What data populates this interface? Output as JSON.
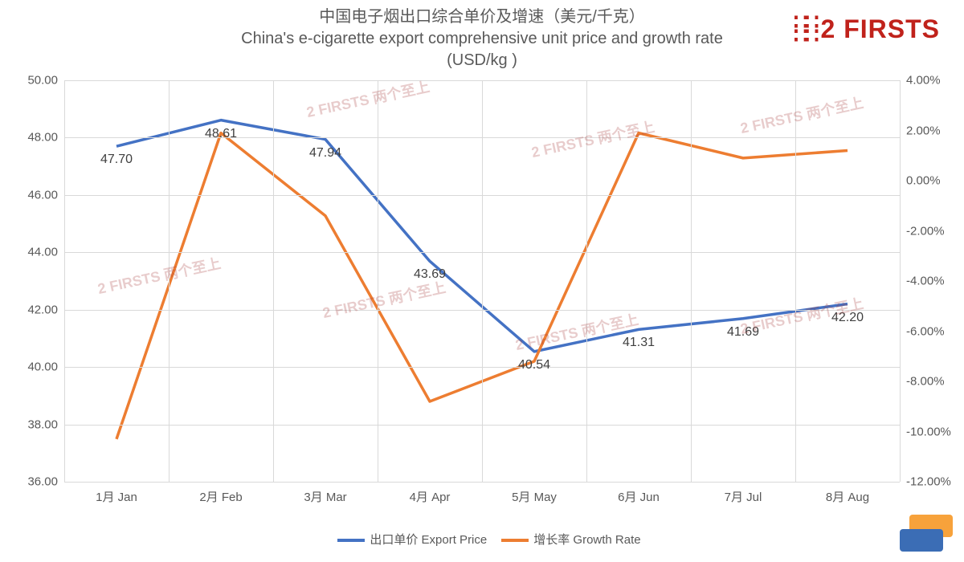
{
  "title_cn": "中国电子烟出口综合单价及增速（美元/千克）",
  "title_en1": "China's e-cigarette export comprehensive unit price and growth rate",
  "title_en2": "(USD/kg )",
  "logo_text": "2 FIRSTS",
  "watermark_text": "2 FIRSTS 两个至上",
  "chart": {
    "type": "line",
    "background_color": "#ffffff",
    "grid_color": "#d9d9d9",
    "title_color": "#595959",
    "axis_label_color": "#595959",
    "axis_fontsize": 15,
    "title_fontsize": 20,
    "data_label_fontsize": 16,
    "data_label_color": "#404040",
    "categories": [
      "1月 Jan",
      "2月 Feb",
      "3月 Mar",
      "4月 Apr",
      "5月 May",
      "6月 Jun",
      "7月 Jul",
      "8月 Aug"
    ],
    "y_left": {
      "min": 36.0,
      "max": 50.0,
      "step": 2.0,
      "format": "fixed2"
    },
    "y_right": {
      "min": -12.0,
      "max": 4.0,
      "step": 2.0,
      "format": "pct2"
    },
    "series": [
      {
        "key": "export_price",
        "name": "出口单价 Export Price",
        "axis": "left",
        "color": "#4472c4",
        "line_width": 3.5,
        "values": [
          47.7,
          48.61,
          47.94,
          43.69,
          40.54,
          41.31,
          41.69,
          42.2
        ],
        "show_labels": true,
        "label_dy_first_two": "below"
      },
      {
        "key": "growth_rate",
        "name": "增长率 Growth Rate",
        "axis": "right",
        "color": "#ed7d31",
        "line_width": 3.5,
        "values": [
          -10.3,
          1.9,
          -1.4,
          -8.8,
          -7.2,
          1.9,
          0.9,
          1.2
        ],
        "show_labels": false
      }
    ]
  },
  "legend": {
    "items": [
      {
        "label": "出口单价 Export Price",
        "color": "#4472c4"
      },
      {
        "label": "增长率 Growth Rate",
        "color": "#ed7d31"
      }
    ]
  },
  "corner_badge_colors": {
    "top": "#f7a23b",
    "bottom": "#3b6db5"
  }
}
